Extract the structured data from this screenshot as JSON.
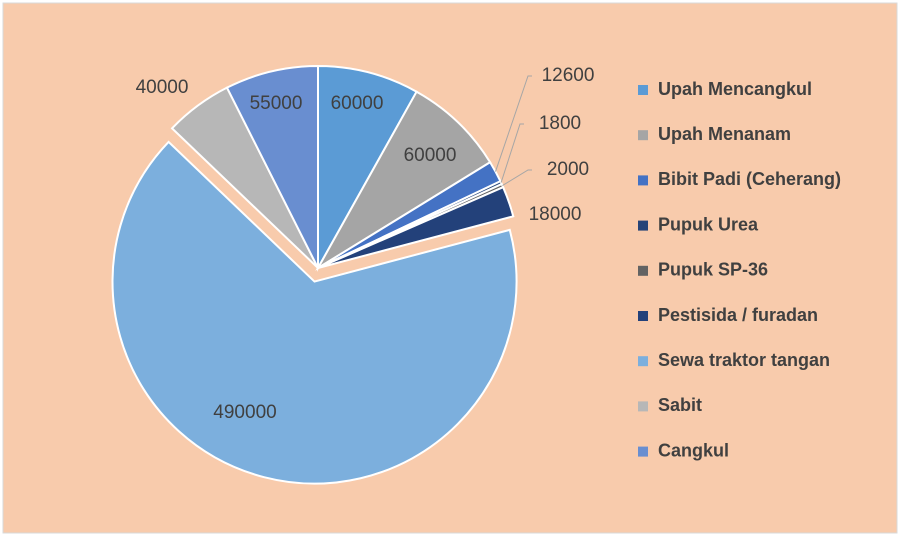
{
  "chart_data": {
    "type": "pie",
    "categories": [
      "Upah Mencangkul",
      "Upah Menanam",
      "Bibit Padi (Ceherang)",
      "Pupuk Urea",
      "Pupuk SP-36",
      "Pestisida / furadan",
      "Sewa traktor tangan",
      "Sabit",
      "Cangkul"
    ],
    "values": [
      60000,
      60000,
      12600,
      1800,
      2000,
      18000,
      490000,
      40000,
      55000
    ],
    "colors": [
      "#5b9bd5",
      "#a5a5a5",
      "#4472c4",
      "#264478",
      "#636363",
      "#23417a",
      "#7cafdd",
      "#b7b7b7",
      "#698ed0"
    ],
    "legend": "right"
  }
}
